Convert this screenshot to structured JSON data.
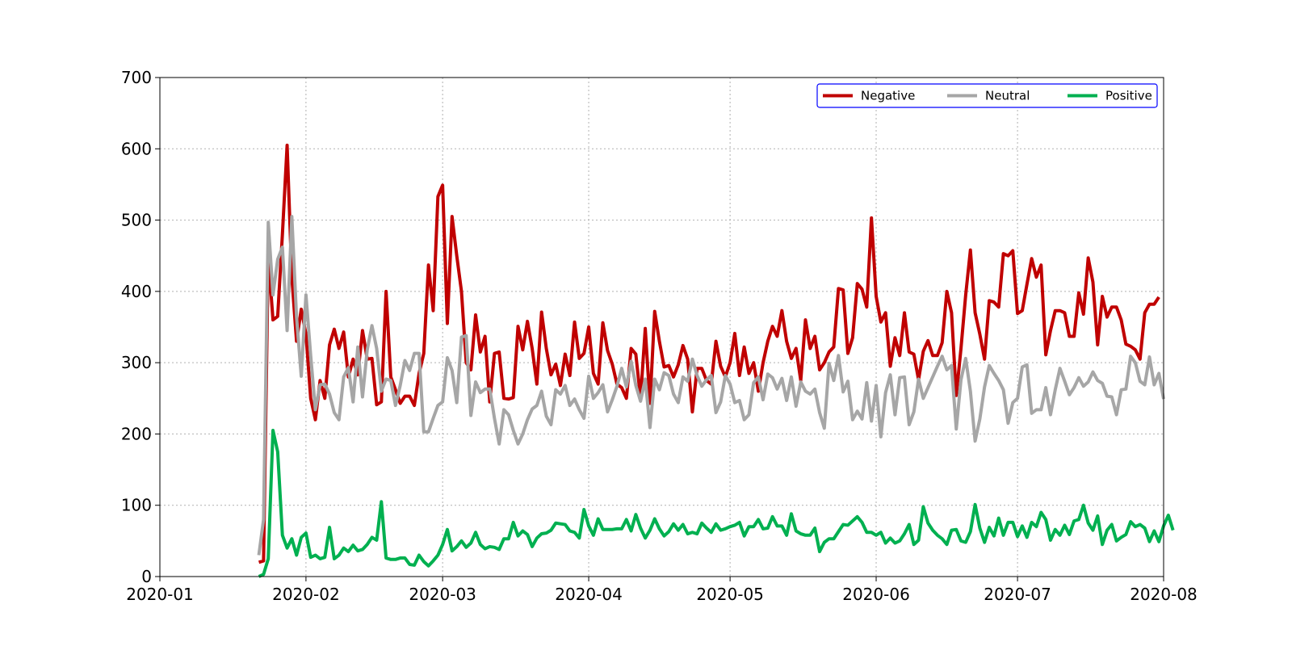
{
  "chart_data": {
    "type": "line",
    "title": "",
    "xlabel": "",
    "ylabel": "",
    "xlim": [
      "2020-01-01",
      "2020-08-01"
    ],
    "ylim": [
      0,
      700
    ],
    "x_ticks": [
      "2020-01",
      "2020-02",
      "2020-03",
      "2020-04",
      "2020-05",
      "2020-06",
      "2020-07",
      "2020-08"
    ],
    "x_tick_dates": [
      "2020-01-01",
      "2020-02-01",
      "2020-03-01",
      "2020-04-01",
      "2020-05-01",
      "2020-06-01",
      "2020-07-01",
      "2020-08-01"
    ],
    "y_ticks": [
      0,
      100,
      200,
      300,
      400,
      500,
      600,
      700
    ],
    "grid": true,
    "legend_position": "top-right",
    "legend_border_color": "#0000ff",
    "x_start": "2020-01-22",
    "x_end": "2020-07-31",
    "series": [
      {
        "name": "Negative",
        "color": "#c00000",
        "values": [
          20,
          22,
          450,
          360,
          365,
          480,
          605,
          420,
          330,
          375,
          340,
          250,
          220,
          275,
          250,
          325,
          347,
          320,
          343,
          280,
          305,
          283,
          345,
          305,
          306,
          241,
          245,
          400,
          280,
          262,
          243,
          253,
          253,
          240,
          285,
          313,
          437,
          373,
          533,
          549,
          355,
          505,
          450,
          400,
          300,
          290,
          367,
          315,
          337,
          245,
          313,
          315,
          250,
          249,
          251,
          351,
          318,
          358,
          320,
          270,
          371,
          320,
          283,
          298,
          268,
          312,
          282,
          357,
          306,
          313,
          350,
          285,
          270,
          356,
          317,
          298,
          270,
          265,
          250,
          320,
          312,
          250,
          348,
          243,
          372,
          330,
          294,
          296,
          280,
          297,
          324,
          305,
          231,
          292,
          292,
          275,
          270,
          330,
          295,
          280,
          300,
          341,
          282,
          322,
          285,
          300,
          260,
          300,
          330,
          351,
          337,
          373,
          330,
          306,
          320,
          275,
          360,
          320,
          337,
          290,
          300,
          315,
          322,
          404,
          402,
          313,
          335,
          411,
          403,
          378,
          503,
          393,
          357,
          370,
          295,
          335,
          310,
          370,
          315,
          312,
          276,
          316,
          331,
          310,
          310,
          328,
          400,
          370,
          254,
          320,
          395,
          458,
          370,
          340,
          305,
          387,
          385,
          378,
          453,
          450,
          457,
          369,
          373,
          410,
          446,
          420,
          437,
          311,
          345,
          373,
          373,
          370,
          337,
          337,
          398,
          368,
          447,
          413,
          325,
          393,
          364,
          378,
          378,
          360,
          326,
          323,
          318,
          305,
          370,
          382,
          382,
          392
        ]
      },
      {
        "name": "Neutral",
        "color": "#a6a6a6",
        "values": [
          30,
          80,
          497,
          395,
          445,
          462,
          345,
          505,
          364,
          281,
          395,
          310,
          234,
          269,
          270,
          256,
          230,
          220,
          280,
          293,
          245,
          322,
          252,
          318,
          352,
          320,
          260,
          277,
          275,
          240,
          268,
          303,
          289,
          313,
          313,
          203,
          203,
          222,
          240,
          245,
          307,
          289,
          244,
          336,
          338,
          226,
          273,
          258,
          263,
          263,
          222,
          186,
          234,
          227,
          205,
          186,
          200,
          220,
          235,
          240,
          260,
          225,
          213,
          262,
          256,
          268,
          240,
          249,
          234,
          222,
          281,
          250,
          258,
          269,
          231,
          248,
          267,
          292,
          266,
          302,
          268,
          246,
          277,
          209,
          277,
          262,
          286,
          282,
          256,
          244,
          280,
          274,
          305,
          282,
          267,
          276,
          282,
          230,
          245,
          282,
          270,
          244,
          247,
          220,
          227,
          272,
          280,
          248,
          284,
          279,
          263,
          278,
          247,
          280,
          239,
          273,
          260,
          256,
          263,
          230,
          208,
          299,
          275,
          310,
          259,
          274,
          220,
          232,
          221,
          272,
          218,
          268,
          196,
          258,
          283,
          227,
          279,
          280,
          213,
          231,
          277,
          250,
          265,
          280,
          295,
          309,
          290,
          296,
          207,
          276,
          306,
          260,
          190,
          221,
          266,
          296,
          285,
          275,
          262,
          215,
          244,
          250,
          294,
          297,
          229,
          234,
          234,
          265,
          227,
          262,
          292,
          274,
          255,
          265,
          279,
          267,
          273,
          287,
          275,
          271,
          253,
          252,
          227,
          262,
          263,
          309,
          300,
          274,
          269,
          308,
          269,
          285,
          249
        ]
      },
      {
        "name": "Positive",
        "color": "#00b050",
        "values": [
          0,
          3,
          25,
          205,
          175,
          58,
          40,
          53,
          30,
          55,
          61,
          27,
          30,
          25,
          27,
          69,
          25,
          30,
          40,
          35,
          44,
          36,
          38,
          45,
          55,
          51,
          105,
          26,
          24,
          24,
          26,
          26,
          17,
          16,
          30,
          21,
          15,
          22,
          30,
          45,
          66,
          36,
          42,
          50,
          41,
          47,
          62,
          45,
          39,
          42,
          41,
          38,
          53,
          53,
          76,
          57,
          64,
          59,
          42,
          54,
          60,
          61,
          65,
          75,
          74,
          73,
          64,
          62,
          54,
          94,
          71,
          58,
          81,
          66,
          66,
          66,
          67,
          67,
          80,
          64,
          87,
          68,
          54,
          65,
          81,
          67,
          57,
          63,
          74,
          65,
          73,
          60,
          62,
          60,
          75,
          68,
          62,
          74,
          65,
          67,
          70,
          72,
          76,
          57,
          70,
          70,
          80,
          67,
          68,
          84,
          71,
          71,
          58,
          88,
          64,
          60,
          58,
          58,
          68,
          35,
          48,
          53,
          53,
          63,
          73,
          72,
          78,
          84,
          76,
          62,
          62,
          58,
          62,
          47,
          54,
          47,
          50,
          60,
          73,
          45,
          51,
          98,
          75,
          65,
          58,
          53,
          45,
          65,
          66,
          50,
          48,
          63,
          101,
          68,
          48,
          69,
          57,
          82,
          58,
          76,
          76,
          56,
          71,
          55,
          76,
          70,
          90,
          80,
          51,
          66,
          58,
          72,
          59,
          78,
          80,
          100,
          75,
          65,
          85,
          45,
          65,
          73,
          50,
          55,
          59,
          77,
          70,
          73,
          68,
          49,
          64,
          49,
          71,
          86,
          65
        ]
      }
    ]
  }
}
